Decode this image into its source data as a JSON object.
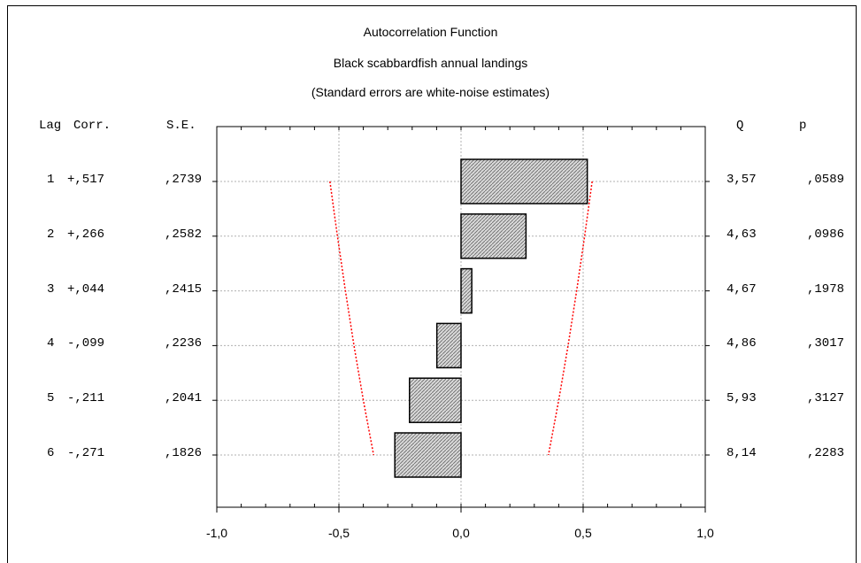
{
  "chart_data": {
    "type": "bar",
    "title": "Autocorrelation Function",
    "subtitle": "Black scabbardfish annual landings",
    "note": "(Standard errors are white-noise estimates)",
    "headers": {
      "lag": "Lag",
      "corr": "Corr.",
      "se": "S.E.",
      "q": "Q",
      "p": "p"
    },
    "rows": [
      {
        "lag": "1",
        "corr": "+,517",
        "se": ",2739",
        "q": "3,57",
        "p": ",0589"
      },
      {
        "lag": "2",
        "corr": "+,266",
        "se": ",2582",
        "q": "4,63",
        "p": ",0986"
      },
      {
        "lag": "3",
        "corr": "+,044",
        "se": ",2415",
        "q": "4,67",
        "p": ",1978"
      },
      {
        "lag": "4",
        "corr": "-,099",
        "se": ",2236",
        "q": "4,86",
        "p": ",3017"
      },
      {
        "lag": "5",
        "corr": "-,211",
        "se": ",2041",
        "q": "5,93",
        "p": ",3127"
      },
      {
        "lag": "6",
        "corr": "-,271",
        "se": ",1826",
        "q": "8,14",
        "p": ",2283"
      }
    ],
    "values": [
      0.517,
      0.266,
      0.044,
      -0.099,
      -0.211,
      -0.271
    ],
    "confidence_limits": [
      0.5368,
      0.5061,
      0.4733,
      0.4383,
      0.4,
      0.3579
    ],
    "xlim": [
      -1.0,
      1.0
    ],
    "xticks": [
      "-1,0",
      "-0,5",
      "0,0",
      "0,5",
      "1,0"
    ],
    "grid": true,
    "colors": {
      "bar_fill": "#d8d8d8",
      "limit_line": "#ff0000",
      "grid": "#b0b0b0"
    }
  }
}
